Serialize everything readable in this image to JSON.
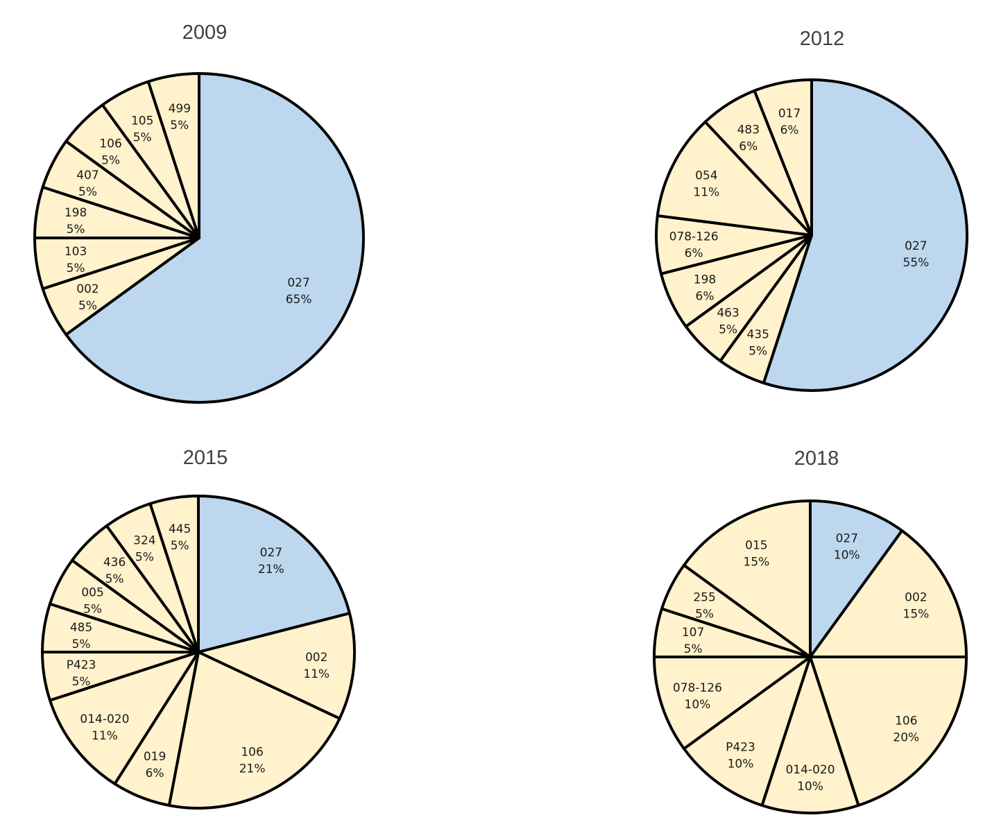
{
  "colors": {
    "highlight": "#bdd7ee",
    "other": "#fff2cc",
    "stroke": "#000000"
  },
  "chart_data": [
    {
      "type": "pie",
      "title": "2009",
      "slices": [
        {
          "label": "027",
          "value": 65,
          "pct": "65%",
          "highlight": true
        },
        {
          "label": "002",
          "value": 5,
          "pct": "5%"
        },
        {
          "label": "103",
          "value": 5,
          "pct": "5%"
        },
        {
          "label": "198",
          "value": 5,
          "pct": "5%"
        },
        {
          "label": "407",
          "value": 5,
          "pct": "5%"
        },
        {
          "label": "106",
          "value": 5,
          "pct": "5%"
        },
        {
          "label": "105",
          "value": 5,
          "pct": "5%"
        },
        {
          "label": "499",
          "value": 5,
          "pct": "5%"
        }
      ]
    },
    {
      "type": "pie",
      "title": "2012",
      "slices": [
        {
          "label": "027",
          "value": 55,
          "pct": "55%",
          "highlight": true
        },
        {
          "label": "435",
          "value": 5,
          "pct": "5%"
        },
        {
          "label": "463",
          "value": 5,
          "pct": "5%"
        },
        {
          "label": "198",
          "value": 6,
          "pct": "6%"
        },
        {
          "label": "078-126",
          "value": 6,
          "pct": "6%"
        },
        {
          "label": "054",
          "value": 11,
          "pct": "11%"
        },
        {
          "label": "483",
          "value": 6,
          "pct": "6%"
        },
        {
          "label": "017",
          "value": 6,
          "pct": "6%"
        }
      ]
    },
    {
      "type": "pie",
      "title": "2015",
      "slices": [
        {
          "label": "027",
          "value": 21,
          "pct": "21%",
          "highlight": true
        },
        {
          "label": "002",
          "value": 11,
          "pct": "11%"
        },
        {
          "label": "106",
          "value": 21,
          "pct": "21%"
        },
        {
          "label": "019",
          "value": 6,
          "pct": "6%"
        },
        {
          "label": "014-020",
          "value": 11,
          "pct": "11%"
        },
        {
          "label": "P423",
          "value": 5,
          "pct": "5%"
        },
        {
          "label": "485",
          "value": 5,
          "pct": "5%"
        },
        {
          "label": "005",
          "value": 5,
          "pct": "5%"
        },
        {
          "label": "436",
          "value": 5,
          "pct": "5%"
        },
        {
          "label": "324",
          "value": 5,
          "pct": "5%"
        },
        {
          "label": "445",
          "value": 5,
          "pct": "5%"
        }
      ]
    },
    {
      "type": "pie",
      "title": "2018",
      "slices": [
        {
          "label": "027",
          "value": 10,
          "pct": "10%",
          "highlight": true
        },
        {
          "label": "002",
          "value": 15,
          "pct": "15%"
        },
        {
          "label": "106",
          "value": 20,
          "pct": "20%"
        },
        {
          "label": "014-020",
          "value": 10,
          "pct": "10%"
        },
        {
          "label": "P423",
          "value": 10,
          "pct": "10%"
        },
        {
          "label": "078-126",
          "value": 10,
          "pct": "10%"
        },
        {
          "label": "107",
          "value": 5,
          "pct": "5%"
        },
        {
          "label": "255",
          "value": 5,
          "pct": "5%"
        },
        {
          "label": "015",
          "value": 15,
          "pct": "15%"
        }
      ]
    }
  ]
}
